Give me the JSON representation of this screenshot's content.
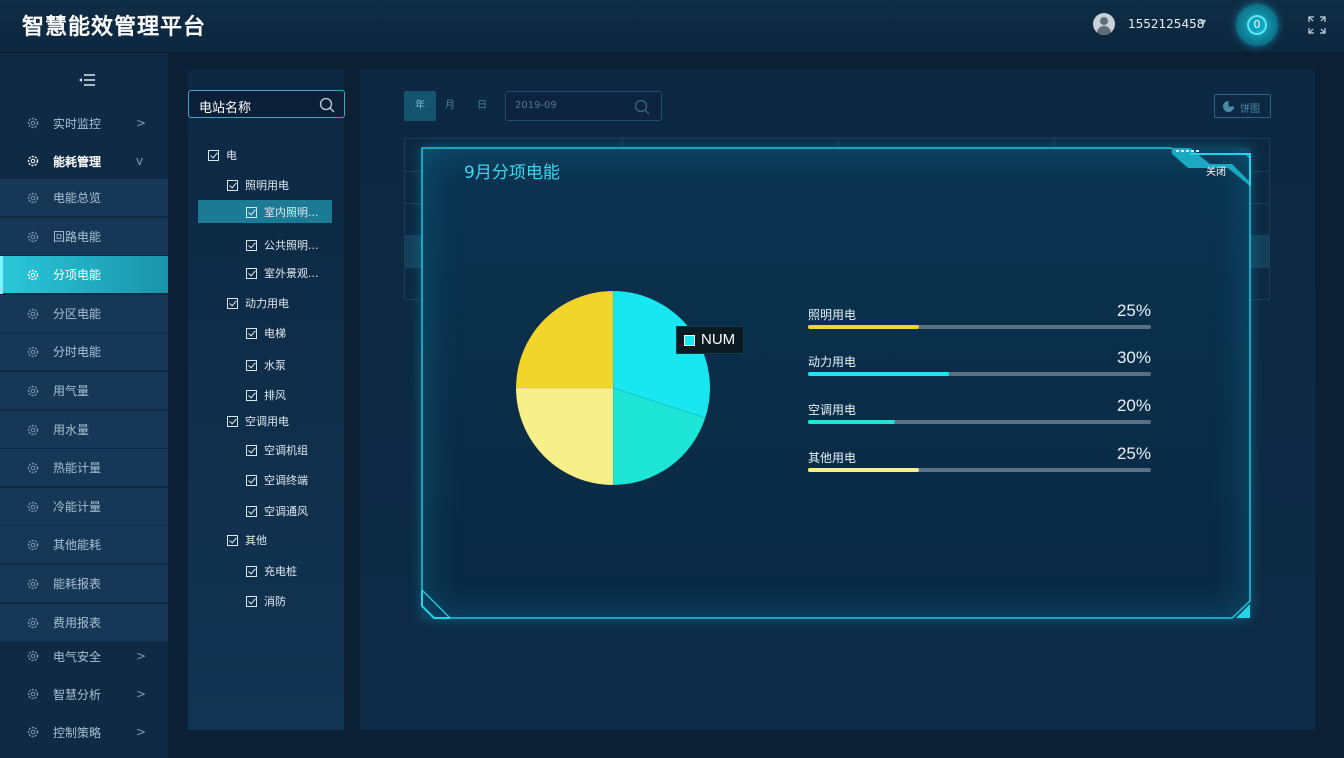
{
  "header": {
    "title": "智慧能效管理平台",
    "username": "1552125458",
    "notification_count": "0"
  },
  "sidebar": {
    "items": [
      {
        "label": "实时监控",
        "arrow": ">"
      },
      {
        "label": "能耗管理",
        "arrow": "v"
      },
      {
        "label": "电能总览"
      },
      {
        "label": "回路电能"
      },
      {
        "label": "分项电能"
      },
      {
        "label": "分区电能"
      },
      {
        "label": "分时电能"
      },
      {
        "label": "用气量"
      },
      {
        "label": "用水量"
      },
      {
        "label": "热能计量"
      },
      {
        "label": "冷能计量"
      },
      {
        "label": "其他能耗"
      },
      {
        "label": "能耗报表"
      },
      {
        "label": "费用报表"
      },
      {
        "label": "电气安全",
        "arrow": ">"
      },
      {
        "label": "智慧分析",
        "arrow": ">"
      },
      {
        "label": "控制策略",
        "arrow": ">"
      }
    ]
  },
  "tree": {
    "search_label": "电站名称",
    "nodes": [
      {
        "label": "电"
      },
      {
        "label": "照明用电"
      },
      {
        "label": "室内照明..."
      },
      {
        "label": "公共照明..."
      },
      {
        "label": "室外景观..."
      },
      {
        "label": "动力用电"
      },
      {
        "label": "电梯"
      },
      {
        "label": "水泵"
      },
      {
        "label": "排风"
      },
      {
        "label": "空调用电"
      },
      {
        "label": "空调机组"
      },
      {
        "label": "空调终端"
      },
      {
        "label": "空调通风"
      },
      {
        "label": "其他"
      },
      {
        "label": "充电桩"
      },
      {
        "label": "消防"
      }
    ]
  },
  "toolbar": {
    "year": "年",
    "month": "月",
    "day": "日",
    "date_value": "2019-09",
    "pie_toggle": "饼图"
  },
  "dialog": {
    "title": "9月分项电能",
    "close_label": "关闭",
    "tooltip_label": "NUM"
  },
  "chart_data": {
    "type": "pie",
    "title": "9月分项电能",
    "slices": [
      {
        "name": "照明用电",
        "value": 25,
        "label": "25%",
        "color": "#f2d52a"
      },
      {
        "name": "动力用电",
        "value": 30,
        "label": "30%",
        "color": "#18e6f0"
      },
      {
        "name": "空调用电",
        "value": 20,
        "label": "20%",
        "color": "#1ee6d6"
      },
      {
        "name": "其他用电",
        "value": 25,
        "label": "25%",
        "color": "#f7f08a"
      }
    ]
  },
  "colors": {
    "accent": "#18e6f0",
    "yellow": "#f2d52a",
    "pale_yellow": "#f7f08a",
    "background": "#0b1f35"
  }
}
